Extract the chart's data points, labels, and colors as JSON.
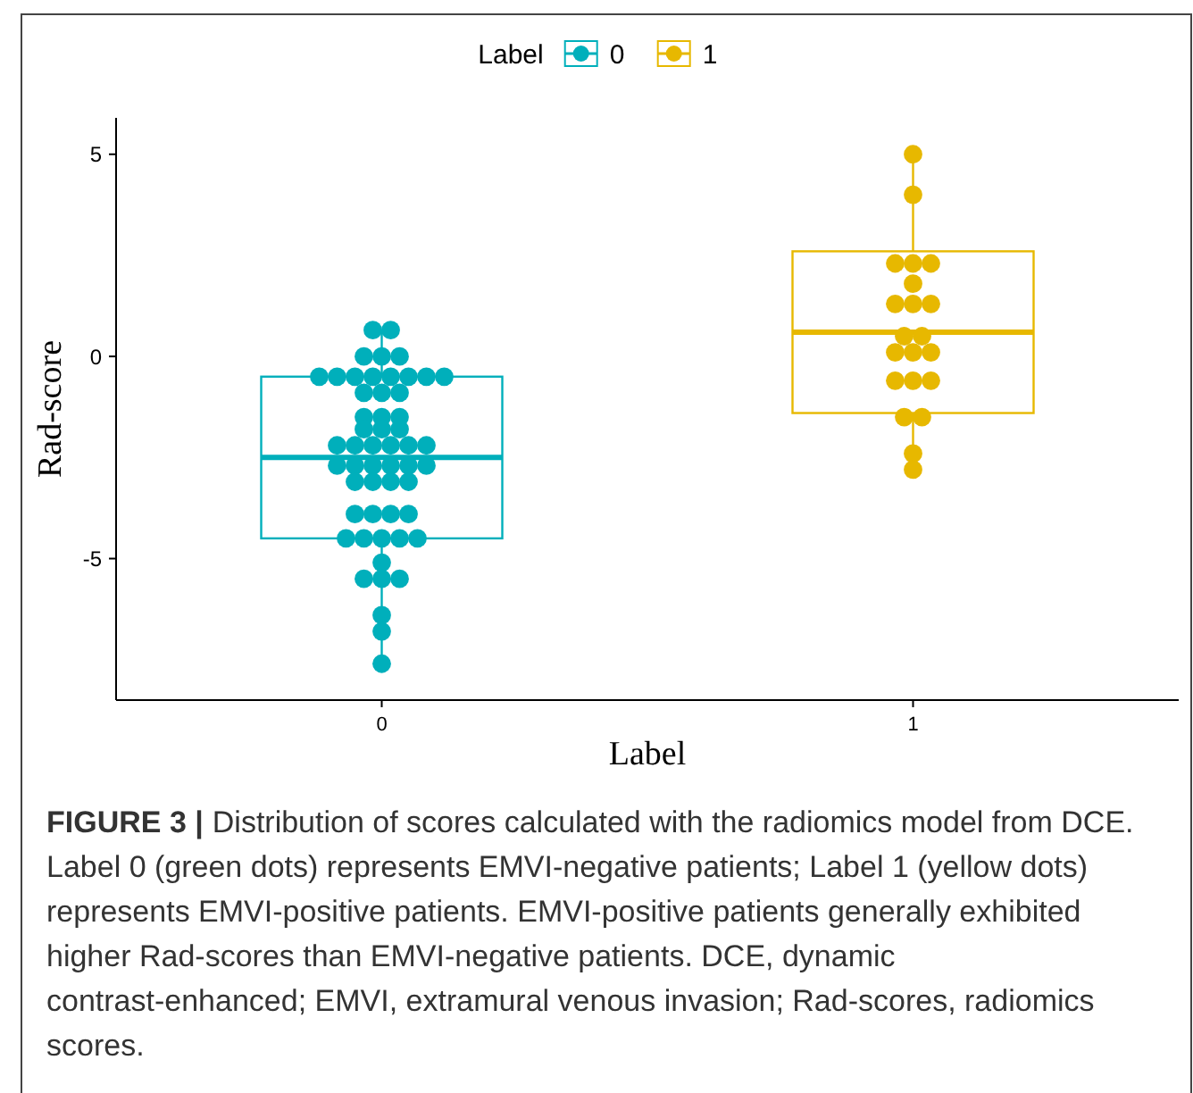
{
  "chart_data": {
    "type": "box",
    "xlabel": "Label",
    "ylabel": "Rad-score",
    "legend_title": "Label",
    "legend": "top",
    "categories": [
      "0",
      "1"
    ],
    "ylim": [
      -8.5,
      5.9
    ],
    "yticks": [
      -5,
      0,
      5
    ],
    "grid": false,
    "series": [
      {
        "name": "0",
        "color": "#00afbb",
        "boxes": [
          {
            "low": -7.6,
            "q1": -4.5,
            "median": -2.5,
            "q3": -0.5,
            "high": 0.65
          },
          null
        ]
      },
      {
        "name": "1",
        "color": "#e7b800",
        "boxes": [
          null,
          {
            "low": -2.8,
            "q1": -1.4,
            "median": 0.6,
            "q3": 2.6,
            "high": 5.0
          }
        ]
      },
      {
        "type": "scatter",
        "color": "#00afbb",
        "marker": "circle",
        "x": [
          "0",
          "0",
          "0",
          "0",
          "0",
          "0",
          "0",
          "0",
          "0",
          "0",
          "0",
          "0",
          "0",
          "0",
          "0",
          "0",
          "0",
          "0",
          "0",
          "0",
          "0",
          "0",
          "0",
          "0",
          "0",
          "0",
          "0",
          "0",
          "0",
          "0",
          "0",
          "0",
          "0",
          "0",
          "0",
          "0",
          "0",
          "0",
          "0",
          "0",
          "0",
          "0",
          "0",
          "0",
          "0",
          "0",
          "0",
          "0",
          "0",
          "0",
          "0",
          "0",
          "0",
          "0"
        ],
        "values": [
          0.65,
          0.65,
          0,
          0,
          0,
          -0.5,
          -0.5,
          -0.5,
          -0.5,
          -0.5,
          -0.5,
          -0.5,
          -0.5,
          -0.9,
          -0.9,
          -0.9,
          -1.5,
          -1.5,
          -1.5,
          -1.8,
          -1.8,
          -1.8,
          -2.2,
          -2.2,
          -2.2,
          -2.2,
          -2.2,
          -2.2,
          -2.7,
          -2.7,
          -2.7,
          -2.7,
          -2.7,
          -2.7,
          -3.1,
          -3.1,
          -3.1,
          -3.1,
          -3.9,
          -3.9,
          -3.9,
          -3.9,
          -4.5,
          -4.5,
          -4.5,
          -4.5,
          -4.5,
          -5.1,
          -5.5,
          -5.5,
          -5.5,
          -6.4,
          -6.8,
          -7.6
        ]
      },
      {
        "type": "scatter",
        "color": "#e7b800",
        "marker": "circle",
        "x": [
          "1",
          "1",
          "1",
          "1",
          "1",
          "1",
          "1",
          "1",
          "1",
          "1",
          "1",
          "1",
          "1",
          "1",
          "1",
          "1",
          "1",
          "1",
          "1",
          "1",
          "1"
        ],
        "values": [
          5.0,
          4.0,
          2.3,
          2.3,
          2.3,
          1.8,
          1.3,
          1.3,
          1.3,
          0.5,
          0.5,
          0.1,
          0.1,
          0.1,
          -0.6,
          -0.6,
          -0.6,
          -1.5,
          -1.5,
          -2.4,
          -2.8
        ]
      }
    ],
    "annotations": [
      "FIGURE 3 |",
      "Distribution of scores calculated with the radiomics model from DCE. Label 0 (green dots) represents EMVI-negative patients; Label 1 (yellow dots) represents EMVI-positive patients. EMVI-positive patients generally exhibited higher Rad-scores than EMVI-negative patients. DCE, dynamic contrast-enhanced; EMVI, extramural venous invasion; Rad-scores, radiomics scores."
    ]
  }
}
